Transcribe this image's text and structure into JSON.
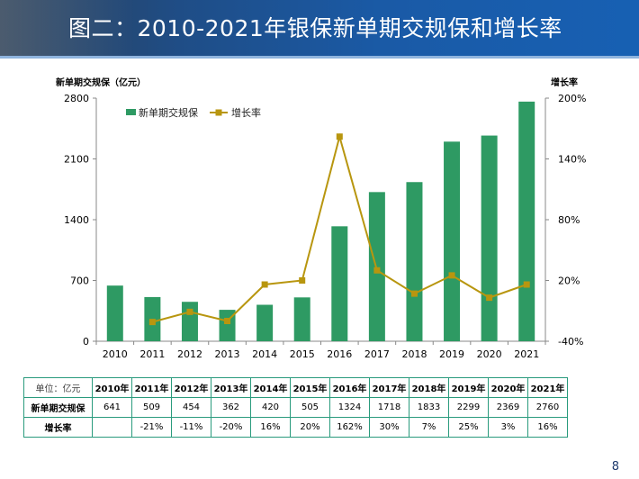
{
  "slide": {
    "title": "图二：2010-2021年银保新单期交规保和增长率",
    "page_number": "8"
  },
  "colors": {
    "bar": "#2e9a63",
    "line": "#b8960f",
    "header": "#1f4d86"
  },
  "chart_data": {
    "type": "bar+line",
    "categories": [
      "2010",
      "2011",
      "2012",
      "2013",
      "2014",
      "2015",
      "2016",
      "2017",
      "2018",
      "2019",
      "2020",
      "2021"
    ],
    "series": [
      {
        "name": "新单期交规保",
        "type": "bar",
        "axis": "left",
        "values": [
          641,
          509,
          454,
          362,
          420,
          505,
          1324,
          1718,
          1833,
          2299,
          2369,
          2760
        ]
      },
      {
        "name": "增长率",
        "type": "line",
        "axis": "right",
        "values": [
          null,
          -21,
          -11,
          -20,
          16,
          20,
          162,
          30,
          7,
          25,
          3,
          16
        ]
      }
    ],
    "ylabel_left": "新单期交规保（亿元）",
    "ylabel_right": "增长率",
    "ylim_left": [
      0,
      2800
    ],
    "yticks_left": [
      "0",
      "700",
      "1400",
      "2100",
      "2800"
    ],
    "ylim_right": [
      -40,
      200
    ],
    "yticks_right": [
      "-40%",
      "20%",
      "80%",
      "140%",
      "200%"
    ],
    "legend_position": "top-left",
    "grid": false
  },
  "table": {
    "unit_label": "单位：亿元",
    "headers": [
      "2010年",
      "2011年",
      "2012年",
      "2013年",
      "2014年",
      "2015年",
      "2016年",
      "2017年",
      "2018年",
      "2019年",
      "2020年",
      "2021年"
    ],
    "rows": [
      {
        "label": "新单期交规保",
        "cells": [
          "641",
          "509",
          "454",
          "362",
          "420",
          "505",
          "1324",
          "1718",
          "1833",
          "2299",
          "2369",
          "2760"
        ]
      },
      {
        "label": "增长率",
        "cells": [
          "",
          "-21%",
          "-11%",
          "-20%",
          "16%",
          "20%",
          "162%",
          "30%",
          "7%",
          "25%",
          "3%",
          "16%"
        ]
      }
    ]
  }
}
